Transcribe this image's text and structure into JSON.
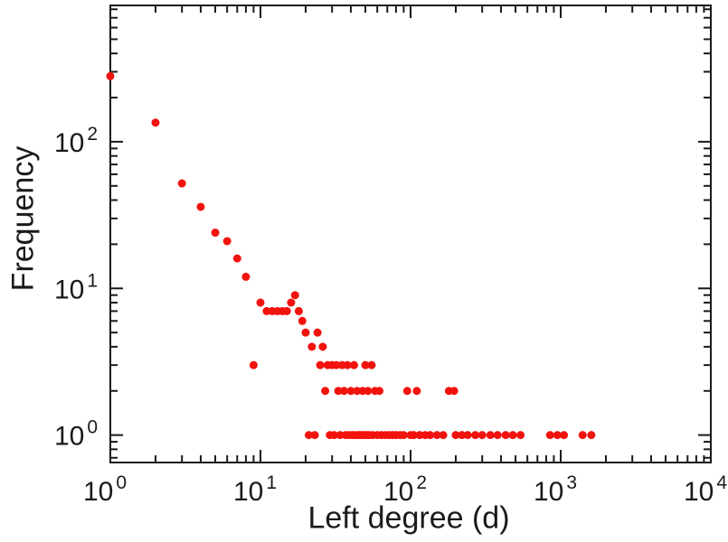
{
  "chart_data": {
    "type": "scatter",
    "title": "",
    "xlabel": "Left degree (d)",
    "ylabel": "Frequency",
    "x_scale": "log",
    "y_scale": "log",
    "xlim": [
      1,
      10000
    ],
    "ylim": [
      0.65,
      850
    ],
    "x_major_ticks": [
      1,
      10,
      100,
      1000,
      10000
    ],
    "y_major_ticks": [
      1,
      10,
      100
    ],
    "grid": false,
    "legend": "none",
    "marker": {
      "shape": "circle",
      "color": "#f2120e",
      "radius_px": 4.5
    },
    "frame": "box-with-mirrored-ticks",
    "points": [
      [
        1,
        280
      ],
      [
        2,
        135
      ],
      [
        3,
        52
      ],
      [
        4,
        36
      ],
      [
        5,
        24
      ],
      [
        6,
        21
      ],
      [
        7,
        16
      ],
      [
        8,
        12
      ],
      [
        9,
        3
      ],
      [
        10,
        8
      ],
      [
        11,
        7
      ],
      [
        12,
        7
      ],
      [
        13,
        7
      ],
      [
        14,
        7
      ],
      [
        15,
        7
      ],
      [
        16,
        8
      ],
      [
        17,
        9
      ],
      [
        18,
        7
      ],
      [
        19,
        6
      ],
      [
        20,
        5
      ],
      [
        22,
        4
      ],
      [
        24,
        5
      ],
      [
        26,
        4
      ],
      [
        25,
        3
      ],
      [
        28,
        3
      ],
      [
        30,
        3
      ],
      [
        32,
        3
      ],
      [
        35,
        3
      ],
      [
        38,
        3
      ],
      [
        42,
        3
      ],
      [
        50,
        3
      ],
      [
        55,
        3
      ],
      [
        27,
        2
      ],
      [
        33,
        2
      ],
      [
        36,
        2
      ],
      [
        40,
        2
      ],
      [
        44,
        2
      ],
      [
        48,
        2
      ],
      [
        52,
        2
      ],
      [
        58,
        2
      ],
      [
        62,
        2
      ],
      [
        95,
        2
      ],
      [
        110,
        2
      ],
      [
        180,
        2
      ],
      [
        195,
        2
      ],
      [
        21,
        1
      ],
      [
        23,
        1
      ],
      [
        29,
        1
      ],
      [
        31,
        1
      ],
      [
        34,
        1
      ],
      [
        37,
        1
      ],
      [
        39,
        1
      ],
      [
        41,
        1
      ],
      [
        43,
        1
      ],
      [
        45,
        1
      ],
      [
        46,
        1
      ],
      [
        47,
        1
      ],
      [
        49,
        1
      ],
      [
        51,
        1
      ],
      [
        53,
        1
      ],
      [
        56,
        1
      ],
      [
        60,
        1
      ],
      [
        64,
        1
      ],
      [
        68,
        1
      ],
      [
        72,
        1
      ],
      [
        76,
        1
      ],
      [
        80,
        1
      ],
      [
        85,
        1
      ],
      [
        90,
        1
      ],
      [
        100,
        1
      ],
      [
        105,
        1
      ],
      [
        115,
        1
      ],
      [
        125,
        1
      ],
      [
        135,
        1
      ],
      [
        150,
        1
      ],
      [
        165,
        1
      ],
      [
        200,
        1
      ],
      [
        220,
        1
      ],
      [
        240,
        1
      ],
      [
        270,
        1
      ],
      [
        300,
        1
      ],
      [
        340,
        1
      ],
      [
        380,
        1
      ],
      [
        430,
        1
      ],
      [
        480,
        1
      ],
      [
        540,
        1
      ],
      [
        850,
        1
      ],
      [
        950,
        1
      ],
      [
        1050,
        1
      ],
      [
        1400,
        1
      ],
      [
        1600,
        1
      ]
    ]
  }
}
